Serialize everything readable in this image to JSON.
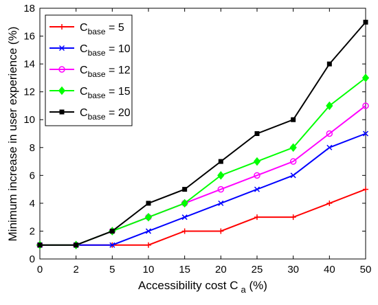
{
  "chart_data": {
    "type": "line",
    "title": "",
    "xlabel": "Accessibility cost C",
    "xlabel_sub": "a",
    "xlabel_suffix": " (%)",
    "ylabel": "Minimum increase in user experience (%)",
    "categories": [
      "0",
      "2",
      "5",
      "10",
      "15",
      "20",
      "25",
      "30",
      "40",
      "50"
    ],
    "ylim": [
      0,
      18
    ],
    "yticks": [
      "0",
      "2",
      "4",
      "6",
      "8",
      "10",
      "12",
      "14",
      "16",
      "18"
    ],
    "grid": false,
    "legend_position": "top-left",
    "series": [
      {
        "name": "C",
        "name_sub": "base",
        "name_suffix": " = 5",
        "color": "#ff0000",
        "marker": "plus",
        "values": [
          1,
          1,
          1,
          1,
          2,
          2,
          3,
          3,
          4,
          5
        ]
      },
      {
        "name": "C",
        "name_sub": "base",
        "name_suffix": " = 10",
        "color": "#0000ff",
        "marker": "x",
        "values": [
          1,
          1,
          1,
          2,
          3,
          4,
          5,
          6,
          8,
          9
        ]
      },
      {
        "name": "C",
        "name_sub": "base",
        "name_suffix": " = 12",
        "color": "#ff00ff",
        "marker": "circle",
        "values": [
          1,
          1,
          2,
          3,
          4,
          5,
          6,
          7,
          9,
          11
        ]
      },
      {
        "name": "C",
        "name_sub": "base",
        "name_suffix": " = 15",
        "color": "#00ff00",
        "marker": "diamond",
        "values": [
          1,
          1,
          2,
          3,
          4,
          6,
          7,
          8,
          11,
          13
        ]
      },
      {
        "name": "C",
        "name_sub": "base",
        "name_suffix": " = 20",
        "color": "#000000",
        "marker": "square",
        "values": [
          1,
          1,
          2,
          4,
          5,
          7,
          9,
          10,
          14,
          17
        ]
      }
    ]
  }
}
